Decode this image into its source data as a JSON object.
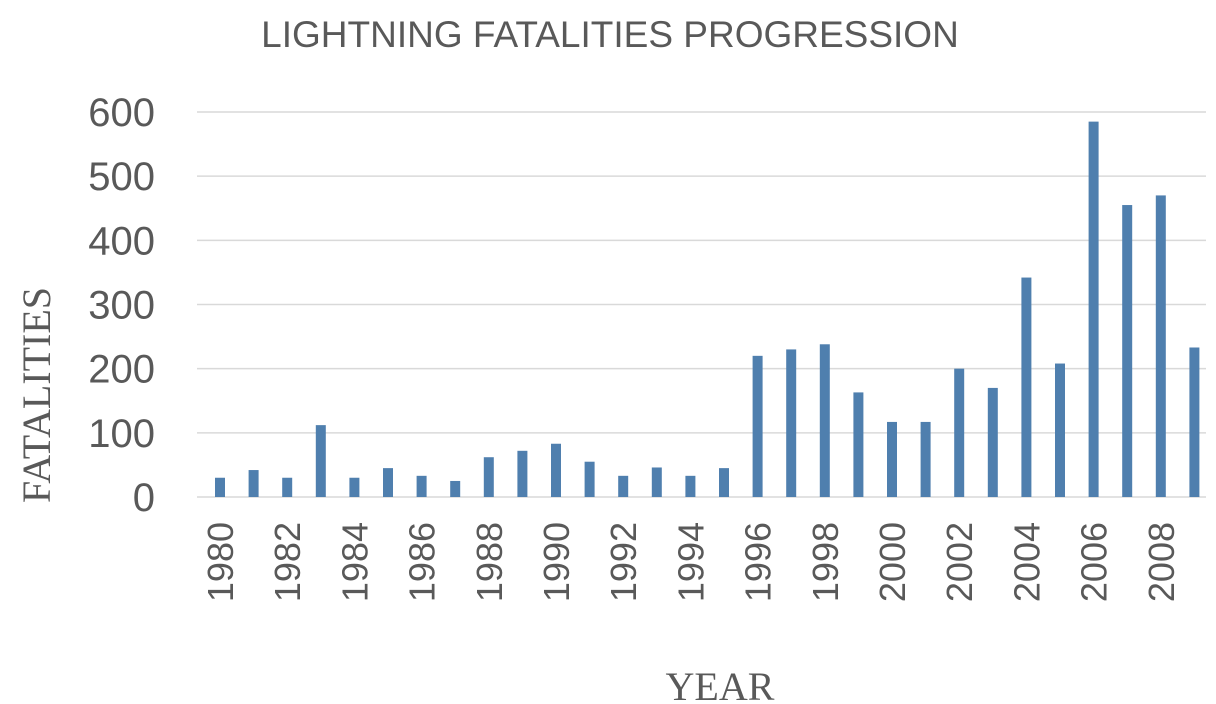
{
  "chart_data": {
    "type": "bar",
    "title": "LIGHTNING FATALITIES PROGRESSION",
    "xlabel": "YEAR",
    "ylabel": "FATALITIES",
    "ylim": [
      0,
      600
    ],
    "yticks": [
      "0",
      "100",
      "200",
      "300",
      "400",
      "500",
      "600"
    ],
    "grid": true,
    "categories": [
      "1980",
      "1981",
      "1982",
      "1983",
      "1984",
      "1985",
      "1986",
      "1987",
      "1988",
      "1989",
      "1990",
      "1991",
      "1992",
      "1993",
      "1994",
      "1995",
      "1996",
      "1997",
      "1998",
      "1999",
      "2000",
      "2001",
      "2002",
      "2003",
      "2004",
      "2005",
      "2006",
      "2007",
      "2008",
      "2009"
    ],
    "xtick_labels": [
      "1980",
      "",
      "1982",
      "",
      "1984",
      "",
      "1986",
      "",
      "1988",
      "",
      "1990",
      "",
      "1992",
      "",
      "1994",
      "",
      "1996",
      "",
      "1998",
      "",
      "2000",
      "",
      "2002",
      "",
      "2004",
      "",
      "2006",
      "",
      "2008",
      ""
    ],
    "values": [
      30,
      42,
      30,
      112,
      30,
      45,
      33,
      25,
      62,
      72,
      83,
      55,
      33,
      46,
      33,
      45,
      220,
      230,
      238,
      163,
      117,
      117,
      200,
      170,
      342,
      208,
      585,
      455,
      470,
      233
    ],
    "colors": {
      "bar": "#4f7fae",
      "grid": "#d9d9d9",
      "text": "#595959"
    }
  }
}
